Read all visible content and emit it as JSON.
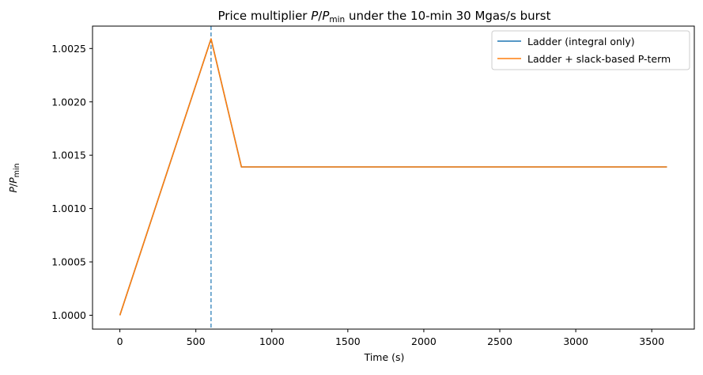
{
  "chart_data": {
    "type": "line",
    "title": {
      "prefix": "Price multiplier ",
      "math_var": "P",
      "slash": "/",
      "math_var2": "P",
      "math_sub": "min",
      "suffix": " under the 10-min 30 Mgas/s burst"
    },
    "xlabel": "Time (s)",
    "ylabel": {
      "math_var": "P",
      "slash": "/",
      "math_var2": "P",
      "math_sub": "min"
    },
    "xlim": [
      -180,
      3780
    ],
    "ylim": [
      0.99987,
      1.00271
    ],
    "xticks": [
      0,
      500,
      1000,
      1500,
      2000,
      2500,
      3000,
      3500
    ],
    "xtick_labels": [
      "0",
      "500",
      "1000",
      "1500",
      "2000",
      "2500",
      "3000",
      "3500"
    ],
    "yticks": [
      1.0,
      1.0005,
      1.001,
      1.0015,
      1.002,
      1.0025
    ],
    "ytick_labels": [
      "1.0000",
      "1.0005",
      "1.0010",
      "1.0015",
      "1.0020",
      "1.0025"
    ],
    "grid": false,
    "legend_position": "top-right",
    "series": [
      {
        "name": "Ladder (integral only)",
        "color": "#1f77b4",
        "x": [
          0,
          600,
          800,
          3600
        ],
        "y": [
          1.0,
          1.00259,
          1.00139,
          1.00139
        ]
      },
      {
        "name": "Ladder + slack-based P-term",
        "color": "#ff7f0e",
        "x": [
          0,
          600,
          800,
          3600
        ],
        "y": [
          1.0,
          1.00259,
          1.00139,
          1.00139
        ]
      }
    ],
    "reference_lines": [
      {
        "axis": "x",
        "value": 600,
        "style": "dashed",
        "color": "#1f77b4"
      }
    ]
  }
}
